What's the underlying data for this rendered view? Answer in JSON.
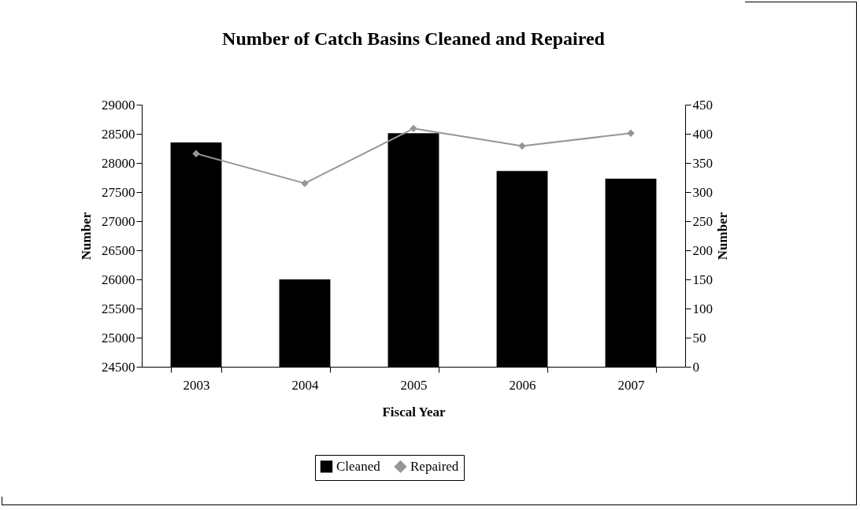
{
  "chart_data": {
    "type": "bar",
    "title": "Number of Catch Basins Cleaned and Repaired",
    "xlabel": "Fiscal Year",
    "ylabel": "Number",
    "y2label": "Number",
    "categories": [
      "2003",
      "2004",
      "2005",
      "2006",
      "2007"
    ],
    "series": [
      {
        "name": "Cleaned",
        "color": "#000000",
        "values": [
          28350,
          26000,
          28510,
          27860,
          27730
        ]
      },
      {
        "name": "Repaired",
        "type": "line",
        "axis": "y2",
        "color": "#969696",
        "values": [
          366,
          315,
          409,
          379,
          401
        ]
      }
    ],
    "ylim": [
      24500,
      29000
    ],
    "yticks": [
      24500,
      25000,
      25500,
      26000,
      26500,
      27000,
      27500,
      28000,
      28500,
      29000
    ],
    "y2lim": [
      0,
      450
    ],
    "y2ticks": [
      0,
      50,
      100,
      150,
      200,
      250,
      300,
      350,
      400,
      450
    ],
    "marker": "diamond",
    "legend": "bottom",
    "grid": false
  }
}
